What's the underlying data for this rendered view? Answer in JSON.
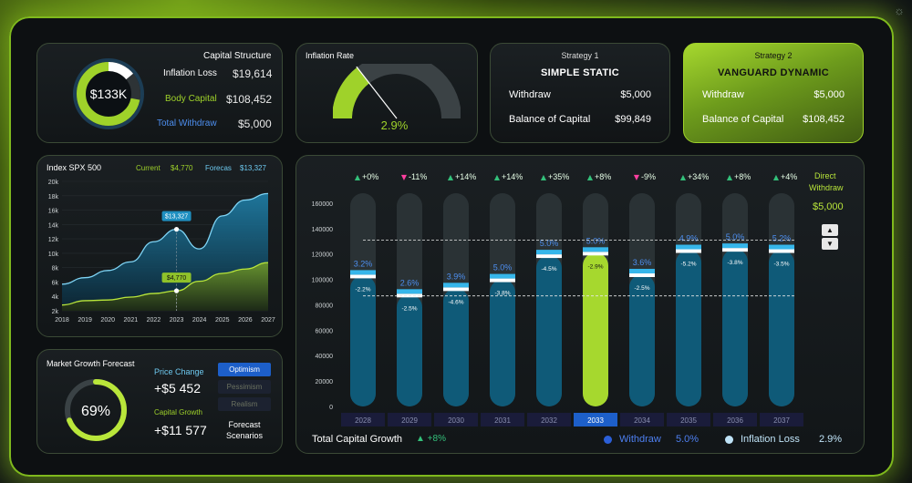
{
  "capital_structure": {
    "title": "Capital Structure",
    "center_value": "$133K",
    "rows": [
      {
        "label": "Inflation Loss",
        "value": "$19,614",
        "color": "#ffffff"
      },
      {
        "label": "Body Capital",
        "value": "$108,452",
        "color": "#9fd22a"
      },
      {
        "label": "Total Withdraw",
        "value": "$5,000",
        "color": "#4d8ff0"
      }
    ]
  },
  "inflation": {
    "title": "Inflation Rate",
    "value": "2.9%",
    "level": 0.29
  },
  "strategy1": {
    "header": "Strategy 1",
    "name": "SIMPLE STATIC",
    "withdraw_label": "Withdraw",
    "withdraw_value": "$5,000",
    "balance_label": "Balance of Capital",
    "balance_value": "$99,849"
  },
  "strategy2": {
    "header": "Strategy 2",
    "name": "VANGUARD DYNAMIC",
    "withdraw_label": "Withdraw",
    "withdraw_value": "$5,000",
    "balance_label": "Balance of Capital",
    "balance_value": "$108,452"
  },
  "index_chart": {
    "title": "Index SPX 500",
    "current_label": "Current",
    "current_value": "$4,770",
    "forecast_label": "Forecas",
    "forecast_value": "$13,327",
    "chart_data": {
      "type": "area",
      "x": [
        "2018",
        "2019",
        "2020",
        "2021",
        "2022",
        "2023",
        "2024",
        "2025",
        "2026",
        "2027"
      ],
      "y_ticks": [
        "2k",
        "4k",
        "6k",
        "8k",
        "10k",
        "12k",
        "14k",
        "16k",
        "18k",
        "20k"
      ],
      "ylim": [
        2000,
        20000
      ],
      "series": [
        {
          "values": [
            5700,
            6600,
            7600,
            8800,
            11600,
            13327,
            10600,
            15200,
            17400,
            18300
          ]
        },
        {
          "values": [
            2800,
            3400,
            3500,
            3900,
            4400,
            4770,
            6100,
            7200,
            7800,
            8700
          ]
        }
      ],
      "annotations": [
        {
          "x": "2023",
          "text": "$13,327"
        },
        {
          "x": "2023",
          "text": "$4,770"
        }
      ]
    }
  },
  "market_growth": {
    "title": "Market Growth Forecast",
    "percent_text": "69%",
    "percent": 0.69,
    "price_change_label": "Price Change",
    "price_change_value": "+$5 452",
    "capital_growth_label": "Capital Growth",
    "capital_growth_value": "+$11 577",
    "scenarios": [
      "Optimism",
      "Pessimism",
      "Realism"
    ],
    "scenarios_label_1": "Forecast",
    "scenarios_label_2": "Scenarios"
  },
  "main_chart": {
    "direct_withdraw_label_1": "Direct",
    "direct_withdraw_label_2": "Withdraw",
    "direct_withdraw_value": "$5,000",
    "footer": {
      "total_label": "Total Capital Growth",
      "total_value": "▲ +8%",
      "withdraw_label": "Withdraw",
      "withdraw_value": "5.0%",
      "inflation_label": "Inflation Loss",
      "inflation_value": "2.9%"
    },
    "chart_data": {
      "type": "bar",
      "categories": [
        "2028",
        "2029",
        "2030",
        "2031",
        "2032",
        "2033",
        "2034",
        "2035",
        "2036",
        "2037"
      ],
      "y_ticks": [
        "0",
        "20000",
        "40000",
        "60000",
        "80000",
        "100000",
        "120000",
        "140000",
        "160000"
      ],
      "ylim": [
        0,
        170000
      ],
      "values": [
        103000,
        88000,
        93000,
        100000,
        119000,
        121000,
        104000,
        123000,
        124000,
        123000
      ],
      "withdraw_labels": [
        "3.2%",
        "2.6%",
        "3.9%",
        "5.0%",
        "5.0%",
        "5.0%",
        "3.6%",
        "4.9%",
        "5.0%",
        "5.2%"
      ],
      "inflation_labels": [
        "-2.2%",
        "-2.5%",
        "-4.6%",
        "-3.8%",
        "-4.5%",
        "-2.9%",
        "-2.5%",
        "-5.2%",
        "-3.8%",
        "-3.5%"
      ],
      "growth_labels": [
        "+0%",
        "-11%",
        "+14%",
        "+14%",
        "+35%",
        "+8%",
        "-9%",
        "+34%",
        "+8%",
        "+4%"
      ],
      "growth_up": [
        true,
        false,
        true,
        true,
        true,
        true,
        false,
        true,
        true,
        true
      ],
      "highlight_index": 5,
      "ref_lines": [
        131000,
        87000
      ],
      "colors": {
        "bar": "#0f5a78",
        "highlight": "#a6d82e",
        "track": "#2a3235",
        "up": "#33c07a",
        "down": "#ff3fa0"
      }
    }
  }
}
